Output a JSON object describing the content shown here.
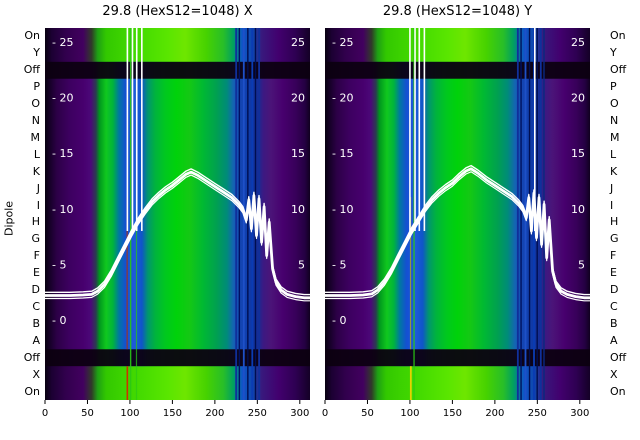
{
  "left_axis_label": "Dipole",
  "row_labels": [
    "On",
    "Y",
    "Off",
    "P",
    "O",
    "N",
    "M",
    "L",
    "K",
    "J",
    "I",
    "H",
    "G",
    "F",
    "E",
    "D",
    "C",
    "B",
    "A",
    "Off",
    "X",
    "On"
  ],
  "palette": {
    "background": "#ffffff",
    "text": "#000000",
    "overlay_line": "#ffffff",
    "dark_band": "#0c0010"
  },
  "chart_data": [
    {
      "type": "heatmap",
      "title": "29.8 (HexS12=1048) X",
      "x_range": [
        0,
        312
      ],
      "x_ticks": [
        0,
        50,
        100,
        150,
        200,
        250,
        300
      ],
      "value_range": [
        0,
        25
      ],
      "value_ticks": [
        25,
        20,
        15,
        10,
        5,
        0
      ],
      "value_ticks_right": [
        25,
        20,
        15,
        10,
        5
      ],
      "dark_row_indices": [
        2,
        19
      ],
      "color_stops": [
        {
          "at": 0,
          "color": "#06000f"
        },
        {
          "at": 6,
          "color": "#170029"
        },
        {
          "at": 14,
          "color": "#2c0047"
        },
        {
          "at": 28,
          "color": "#3c005f"
        },
        {
          "at": 45,
          "color": "#47006e"
        },
        {
          "at": 54,
          "color": "#4b0878"
        },
        {
          "at": 60,
          "color": "#2a3c50"
        },
        {
          "at": 64,
          "color": "#00961e"
        },
        {
          "at": 72,
          "color": "#10c81e"
        },
        {
          "at": 80,
          "color": "#00b43c"
        },
        {
          "at": 87,
          "color": "#0078a0"
        },
        {
          "at": 95,
          "color": "#1450d2"
        },
        {
          "at": 105,
          "color": "#1e5adc"
        },
        {
          "at": 114,
          "color": "#0f55c8"
        },
        {
          "at": 121,
          "color": "#00966e"
        },
        {
          "at": 130,
          "color": "#00b43c"
        },
        {
          "at": 142,
          "color": "#00c81e"
        },
        {
          "at": 155,
          "color": "#00d20a"
        },
        {
          "at": 170,
          "color": "#14c814"
        },
        {
          "at": 186,
          "color": "#00b932"
        },
        {
          "at": 202,
          "color": "#00a050"
        },
        {
          "at": 214,
          "color": "#008c78"
        },
        {
          "at": 222,
          "color": "#1464b4"
        },
        {
          "at": 230,
          "color": "#1446b4"
        },
        {
          "at": 240,
          "color": "#0f3caa"
        },
        {
          "at": 250,
          "color": "#142e96"
        },
        {
          "at": 257,
          "color": "#3c1982"
        },
        {
          "at": 266,
          "color": "#4b1478"
        },
        {
          "at": 280,
          "color": "#47006e"
        },
        {
          "at": 295,
          "color": "#38005a"
        },
        {
          "at": 306,
          "color": "#240042"
        },
        {
          "at": 312,
          "color": "#10001f"
        }
      ],
      "band_stops": [
        {
          "at": 0,
          "color": "#06000f"
        },
        {
          "at": 8,
          "color": "#1c0033"
        },
        {
          "at": 25,
          "color": "#32004e"
        },
        {
          "at": 45,
          "color": "#42005f"
        },
        {
          "at": 55,
          "color": "#303c28"
        },
        {
          "at": 62,
          "color": "#1ea014"
        },
        {
          "at": 72,
          "color": "#32c800"
        },
        {
          "at": 90,
          "color": "#3cd200"
        },
        {
          "at": 115,
          "color": "#46dc00"
        },
        {
          "at": 145,
          "color": "#5ae600"
        },
        {
          "at": 165,
          "color": "#6ee600"
        },
        {
          "at": 190,
          "color": "#46d200"
        },
        {
          "at": 210,
          "color": "#28be28"
        },
        {
          "at": 222,
          "color": "#00a060"
        },
        {
          "at": 232,
          "color": "#0f55c8"
        },
        {
          "at": 245,
          "color": "#0f46aa"
        },
        {
          "at": 255,
          "color": "#38197d"
        },
        {
          "at": 275,
          "color": "#42006e"
        },
        {
          "at": 295,
          "color": "#2e0052"
        },
        {
          "at": 312,
          "color": "#140026"
        }
      ],
      "stripes": [
        {
          "x": 96,
          "w": 1.6,
          "color": "#d03000",
          "span": "bottom",
          "opacity": 1
        },
        {
          "x": 96,
          "w": 1.2,
          "color": "#b43200",
          "span": "lowmain",
          "opacity": 0.8
        },
        {
          "x": 100,
          "w": 1.4,
          "color": "#2ac814",
          "span": "full",
          "opacity": 0.9
        },
        {
          "x": 107,
          "w": 1.2,
          "color": "#2ac814",
          "span": "full",
          "opacity": 0.7
        },
        {
          "x": 224,
          "w": 1.8,
          "color": "#10309b",
          "span": "full",
          "opacity": 1
        },
        {
          "x": 228,
          "w": 1.4,
          "color": "#001060",
          "span": "full",
          "opacity": 1
        },
        {
          "x": 233,
          "w": 1.8,
          "color": "#1e50c8",
          "span": "full",
          "opacity": 1
        },
        {
          "x": 238,
          "w": 1.4,
          "color": "#000e50",
          "span": "full",
          "opacity": 1
        },
        {
          "x": 243,
          "w": 1.8,
          "color": "#0a3cb4",
          "span": "full",
          "opacity": 1
        },
        {
          "x": 247,
          "w": 1.4,
          "color": "#000e50",
          "span": "full",
          "opacity": 1
        },
        {
          "x": 251,
          "w": 1.8,
          "color": "#10309b",
          "span": "full",
          "opacity": 1
        }
      ],
      "profile": {
        "x": [
          0,
          15,
          30,
          45,
          55,
          62,
          70,
          78,
          86,
          94,
          102,
          110,
          118,
          126,
          134,
          142,
          150,
          158,
          166,
          172,
          180,
          190,
          200,
          210,
          220,
          228,
          233,
          237,
          240,
          243,
          246,
          249,
          252,
          255,
          258,
          261,
          264,
          268,
          272,
          278,
          285,
          295,
          305,
          312
        ],
        "v": [
          2.2,
          2.2,
          2.2,
          2.25,
          2.3,
          2.6,
          3.2,
          4.2,
          5.4,
          6.6,
          7.8,
          8.9,
          9.8,
          10.6,
          11.2,
          11.7,
          12.1,
          12.6,
          13.1,
          13.3,
          13.0,
          12.5,
          12.0,
          11.5,
          11.0,
          10.4,
          9.9,
          9.0,
          10.8,
          8.2,
          11.2,
          7.6,
          10.9,
          7.0,
          10.2,
          5.8,
          8.8,
          4.6,
          3.4,
          2.7,
          2.3,
          2.1,
          2.0,
          2.0
        ]
      },
      "spike_x": [
        97,
        103,
        108,
        114
      ]
    },
    {
      "type": "heatmap",
      "title": "29.8 (HexS12=1048) Y",
      "x_range": [
        0,
        312
      ],
      "x_ticks": [
        0,
        50,
        100,
        150,
        200,
        250,
        300
      ],
      "value_range": [
        0,
        25
      ],
      "value_ticks": [
        25,
        20,
        15,
        10,
        5,
        0
      ],
      "value_ticks_right": [
        25,
        20,
        15,
        10,
        5
      ],
      "dark_row_indices": [
        2,
        19
      ],
      "color_stops": [
        {
          "at": 0,
          "color": "#06000f"
        },
        {
          "at": 6,
          "color": "#170029"
        },
        {
          "at": 14,
          "color": "#2c0047"
        },
        {
          "at": 28,
          "color": "#3c005f"
        },
        {
          "at": 45,
          "color": "#47006e"
        },
        {
          "at": 54,
          "color": "#4b0878"
        },
        {
          "at": 60,
          "color": "#2a3c50"
        },
        {
          "at": 64,
          "color": "#00961e"
        },
        {
          "at": 73,
          "color": "#10c81e"
        },
        {
          "at": 81,
          "color": "#00b43c"
        },
        {
          "at": 88,
          "color": "#0078a0"
        },
        {
          "at": 96,
          "color": "#1450d2"
        },
        {
          "at": 106,
          "color": "#1e5adc"
        },
        {
          "at": 115,
          "color": "#0f55c8"
        },
        {
          "at": 122,
          "color": "#00966e"
        },
        {
          "at": 131,
          "color": "#00b43c"
        },
        {
          "at": 143,
          "color": "#00c81e"
        },
        {
          "at": 156,
          "color": "#00d20a"
        },
        {
          "at": 171,
          "color": "#14c814"
        },
        {
          "at": 187,
          "color": "#00b932"
        },
        {
          "at": 203,
          "color": "#00a050"
        },
        {
          "at": 215,
          "color": "#008c78"
        },
        {
          "at": 224,
          "color": "#1464b4"
        },
        {
          "at": 232,
          "color": "#1446b4"
        },
        {
          "at": 242,
          "color": "#0f3caa"
        },
        {
          "at": 252,
          "color": "#142e96"
        },
        {
          "at": 259,
          "color": "#3c1982"
        },
        {
          "at": 268,
          "color": "#4b1478"
        },
        {
          "at": 282,
          "color": "#47006e"
        },
        {
          "at": 296,
          "color": "#38005a"
        },
        {
          "at": 306,
          "color": "#240042"
        },
        {
          "at": 312,
          "color": "#10001f"
        }
      ],
      "band_stops": [
        {
          "at": 0,
          "color": "#06000f"
        },
        {
          "at": 8,
          "color": "#1c0033"
        },
        {
          "at": 25,
          "color": "#32004e"
        },
        {
          "at": 45,
          "color": "#42005f"
        },
        {
          "at": 55,
          "color": "#303c28"
        },
        {
          "at": 62,
          "color": "#1ea014"
        },
        {
          "at": 72,
          "color": "#32c800"
        },
        {
          "at": 90,
          "color": "#3cd200"
        },
        {
          "at": 115,
          "color": "#46dc00"
        },
        {
          "at": 145,
          "color": "#5ae600"
        },
        {
          "at": 165,
          "color": "#6ee600"
        },
        {
          "at": 190,
          "color": "#46d200"
        },
        {
          "at": 210,
          "color": "#28be28"
        },
        {
          "at": 222,
          "color": "#00a060"
        },
        {
          "at": 234,
          "color": "#0f55c8"
        },
        {
          "at": 247,
          "color": "#0f46aa"
        },
        {
          "at": 257,
          "color": "#38197d"
        },
        {
          "at": 277,
          "color": "#42006e"
        },
        {
          "at": 296,
          "color": "#2e0052"
        },
        {
          "at": 312,
          "color": "#140026"
        }
      ],
      "stripes": [
        {
          "x": 100,
          "w": 1.8,
          "color": "#e6d200",
          "span": "bottom",
          "opacity": 1
        },
        {
          "x": 100,
          "w": 1.2,
          "color": "#c8b400",
          "span": "lowmain",
          "opacity": 0.7
        },
        {
          "x": 104,
          "w": 1.4,
          "color": "#2ac814",
          "span": "full",
          "opacity": 0.85
        },
        {
          "x": 226,
          "w": 1.8,
          "color": "#10309b",
          "span": "full",
          "opacity": 1
        },
        {
          "x": 230,
          "w": 1.4,
          "color": "#001060",
          "span": "full",
          "opacity": 1
        },
        {
          "x": 235,
          "w": 1.8,
          "color": "#1e50c8",
          "span": "full",
          "opacity": 1
        },
        {
          "x": 240,
          "w": 1.4,
          "color": "#000e50",
          "span": "full",
          "opacity": 1
        },
        {
          "x": 245,
          "w": 1.8,
          "color": "#0a3cb4",
          "span": "full",
          "opacity": 1
        },
        {
          "x": 249,
          "w": 1.4,
          "color": "#000e50",
          "span": "full",
          "opacity": 1
        },
        {
          "x": 253,
          "w": 1.8,
          "color": "#10309b",
          "span": "full",
          "opacity": 1
        },
        {
          "x": 257,
          "w": 1.4,
          "color": "#0a2880",
          "span": "full",
          "opacity": 1
        }
      ],
      "profile": {
        "x": [
          0,
          15,
          30,
          45,
          55,
          62,
          70,
          78,
          86,
          94,
          102,
          110,
          118,
          126,
          134,
          142,
          150,
          158,
          166,
          172,
          180,
          190,
          200,
          210,
          220,
          228,
          233,
          237,
          240,
          243,
          246,
          249,
          252,
          255,
          258,
          261,
          264,
          268,
          272,
          278,
          285,
          295,
          305,
          312
        ],
        "v": [
          2.2,
          2.2,
          2.2,
          2.25,
          2.35,
          2.7,
          3.4,
          4.4,
          5.6,
          6.8,
          8.0,
          9.0,
          10.0,
          10.8,
          11.4,
          11.9,
          12.3,
          12.9,
          13.4,
          13.6,
          13.2,
          12.6,
          12.1,
          11.6,
          11.1,
          10.5,
          10.0,
          9.2,
          11.0,
          8.0,
          11.4,
          7.4,
          11.0,
          6.8,
          10.4,
          5.6,
          9.0,
          4.4,
          3.2,
          2.6,
          2.3,
          2.1,
          2.0,
          2.0
        ]
      },
      "spike_x": [
        100,
        106,
        111,
        117,
        247
      ]
    }
  ]
}
